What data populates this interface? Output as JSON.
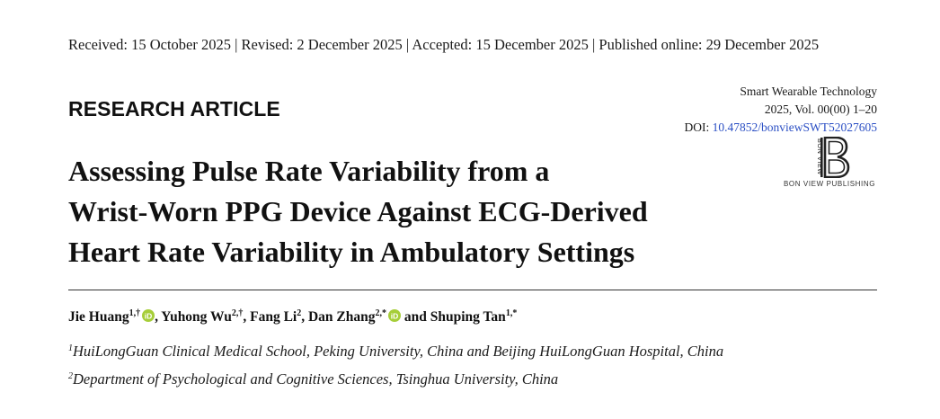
{
  "header": {
    "dates": "Received: 15 October 2025 | Revised: 2 December 2025 | Accepted: 15 December 2025 | Published online: 29 December 2025",
    "article_type": "RESEARCH ARTICLE"
  },
  "journal": {
    "name": "Smart Wearable Technology",
    "volume": "2025, Vol. 00(00) 1–20",
    "doi_label": "DOI: ",
    "doi_value": "10.47852/bonviewSWT52027605"
  },
  "publisher": {
    "logo_text": "BON VIEW",
    "name": "BON VIEW PUBLISHING"
  },
  "title": {
    "lines": [
      "Assessing Pulse Rate Variability from a",
      "Wrist-Worn PPG Device Against ECG-Derived",
      "Heart Rate Variability in Ambulatory Settings"
    ]
  },
  "authors": [
    {
      "name": "Jie Huang",
      "sup": "1,†",
      "orcid": true,
      "sep": ", "
    },
    {
      "name": "Yuhong Wu",
      "sup": "2,†",
      "orcid": false,
      "sep": ", "
    },
    {
      "name": "Fang Li",
      "sup": "2",
      "orcid": false,
      "sep": ", "
    },
    {
      "name": "Dan Zhang",
      "sup": "2,*",
      "orcid": true,
      "sep": " and "
    },
    {
      "name": "Shuping Tan",
      "sup": "1,*",
      "orcid": false,
      "sep": ""
    }
  ],
  "affiliations": [
    {
      "num": "1",
      "text": "HuiLongGuan Clinical Medical School, Peking University, China and Beijing HuiLongGuan Hospital, China"
    },
    {
      "num": "2",
      "text": "Department of Psychological and Cognitive Sciences, Tsinghua University, China"
    }
  ],
  "colors": {
    "link": "#2b4fc4",
    "orcid": "#a6ce39"
  },
  "icons": {
    "orcid": "orcid-icon",
    "publisher_logo": "bon-view-logo-icon"
  }
}
